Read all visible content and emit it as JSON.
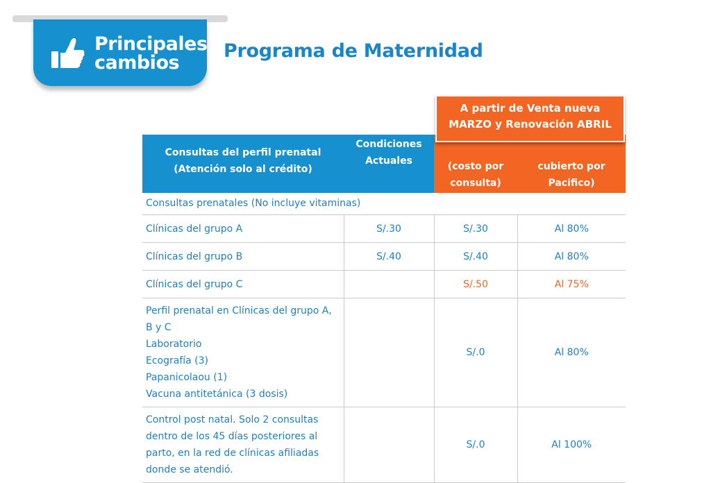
{
  "badge": {
    "line1": "Principales",
    "line2": "cambios",
    "icon": "thumbs-up-icon"
  },
  "title": "Programa de Maternidad",
  "new_conditions_header": {
    "line1": "A partir de Venta nueva",
    "line2": "MARZO  y  Renovación ABRIL"
  },
  "table": {
    "headers": {
      "col1": "Consultas del perfil prenatal (Atención solo al crédito)",
      "col2": "Condiciones Actuales",
      "col3": "(costo por consulta)",
      "col4": "cubierto por Pacifico)"
    },
    "section": "Consultas prenatales  (No incluye vitaminas)",
    "rows": [
      {
        "label": "Clínicas del grupo A",
        "current": "S/.30",
        "cost": "S/.30",
        "coverage": "Al 80%"
      },
      {
        "label": "Clínicas del grupo B",
        "current": "S/.40",
        "cost": "S/.40",
        "coverage": "Al 80%"
      },
      {
        "label": "Clínicas del grupo C",
        "current": "",
        "cost": "S/.50",
        "coverage": "Al 75%"
      },
      {
        "label_lines": [
          "Perfil prenatal en Clínicas del grupo A, B y C",
          "Laboratorio",
          "Ecografía (3)",
          "Papanicolaou (1)",
          "Vacuna antitetánica (3 dosis)"
        ],
        "current": "",
        "cost": "S/.0",
        "coverage": "Al 80%"
      },
      {
        "label": "Control post natal. Solo 2 consultas dentro de los 45 días posteriores al parto, en la red de clínicas afiliadas donde se atendió.",
        "current": "",
        "cost": "S/.0",
        "coverage": "Al 100%"
      }
    ]
  },
  "colors": {
    "blue": "#1790cf",
    "orange": "#f26522",
    "text_blue": "#1f7fc0"
  }
}
